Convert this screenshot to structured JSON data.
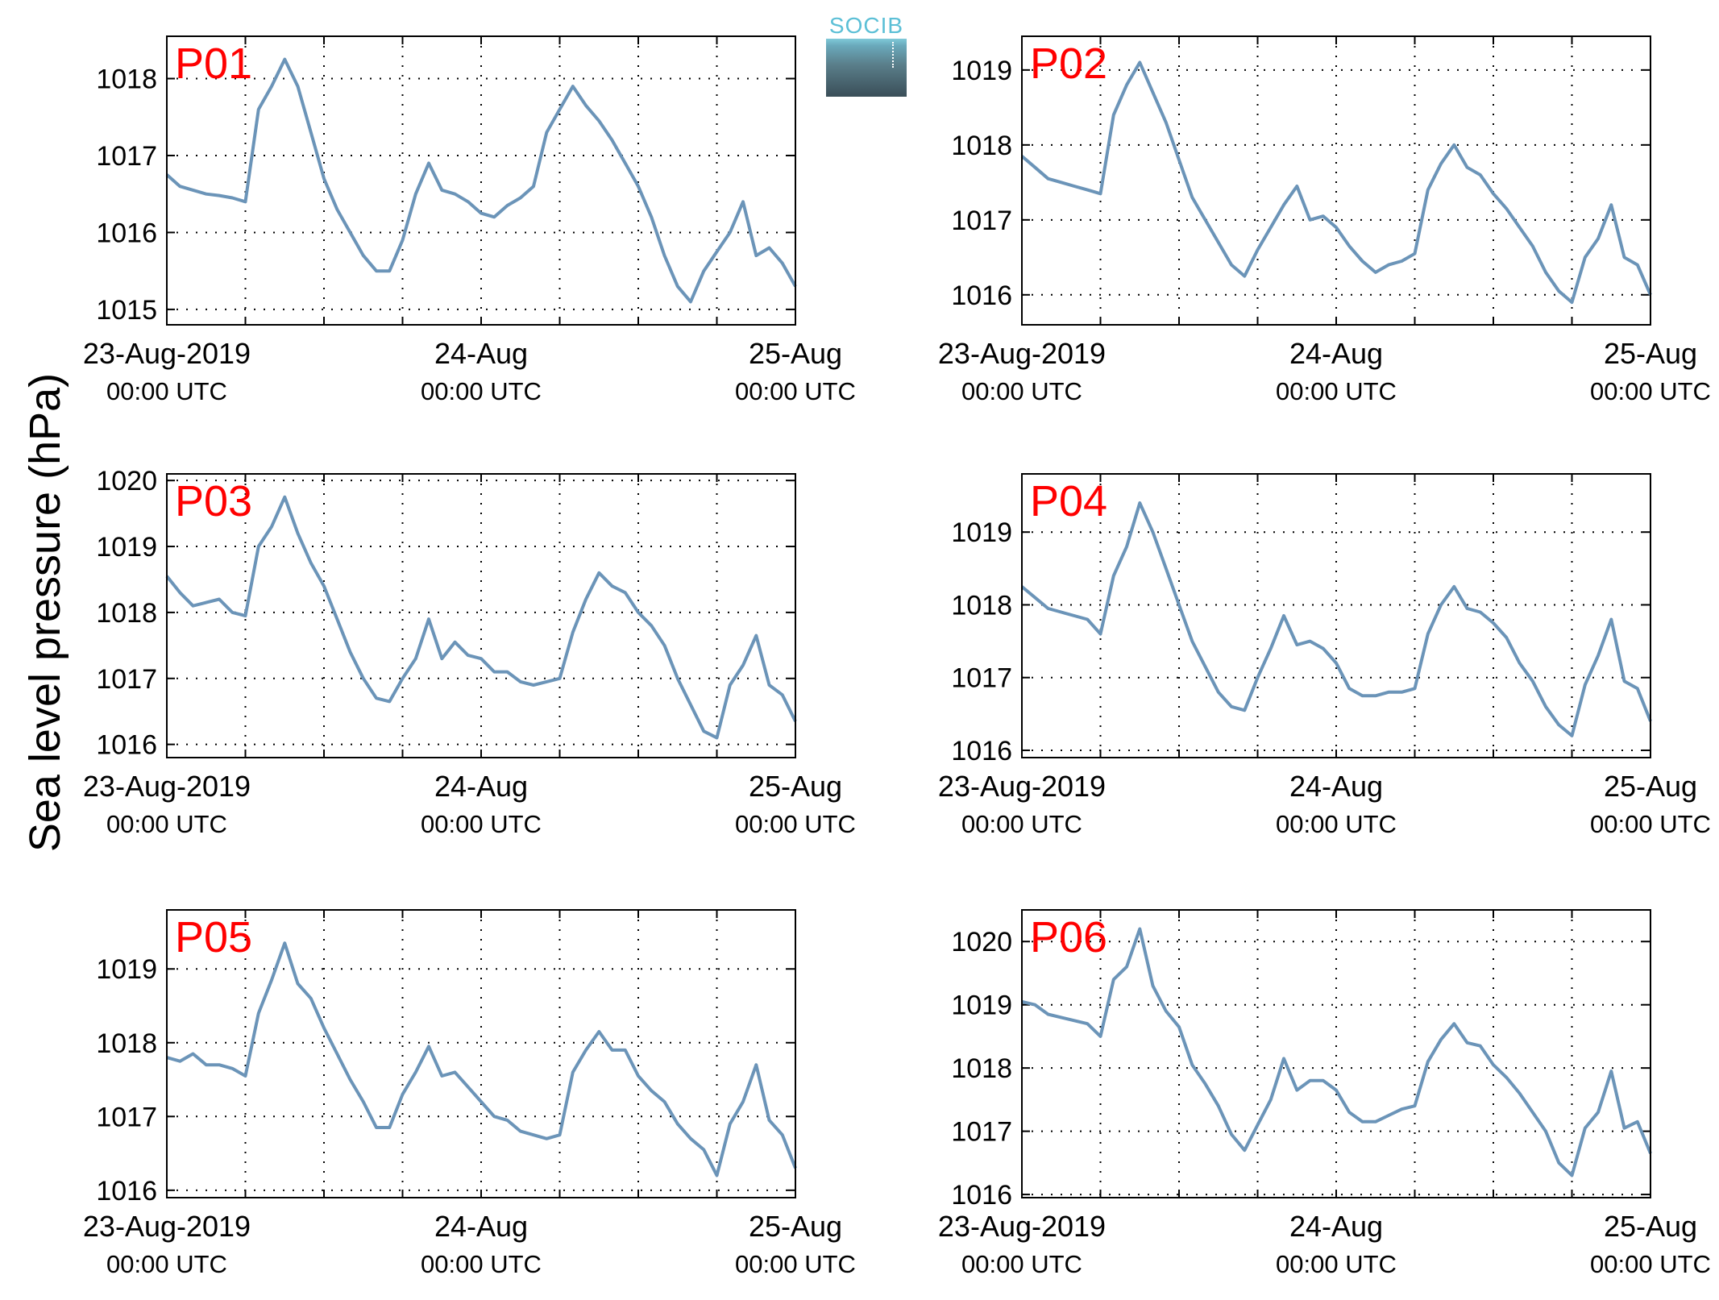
{
  "figure": {
    "ylabel": "Sea level pressure (hPa)",
    "logo_text": "SOCIB",
    "x_ticks": [
      {
        "main": "23-Aug-2019",
        "sub": "00:00 UTC"
      },
      {
        "main": "24-Aug",
        "sub": "00:00 UTC"
      },
      {
        "main": "25-Aug",
        "sub": "00:00 UTC"
      }
    ],
    "colors": {
      "line": "#6b94b8",
      "panel_label": "#ff0000",
      "axes": "#000000",
      "grid": "#000000"
    }
  },
  "chart_data": [
    {
      "type": "line",
      "label": "P01",
      "xlim": [
        0,
        48
      ],
      "ylim": [
        1014.8,
        1018.55
      ],
      "yticks": [
        1015,
        1016,
        1017,
        1018
      ],
      "grid": true,
      "x": [
        0,
        1,
        2,
        3,
        4,
        5,
        6,
        7,
        8,
        9,
        10,
        11,
        12,
        13,
        14,
        15,
        16,
        17,
        18,
        19,
        20,
        21,
        22,
        23,
        24,
        25,
        26,
        27,
        28,
        29,
        30,
        31,
        32,
        33,
        34,
        35,
        36,
        37,
        38,
        39,
        40,
        41,
        42,
        43,
        44,
        45,
        46,
        47,
        48
      ],
      "values": [
        1016.75,
        1016.6,
        1016.55,
        1016.5,
        1016.48,
        1016.45,
        1016.4,
        1017.6,
        1017.9,
        1018.25,
        1017.9,
        1017.3,
        1016.7,
        1016.3,
        1016.0,
        1015.7,
        1015.5,
        1015.5,
        1015.9,
        1016.5,
        1016.9,
        1016.55,
        1016.5,
        1016.4,
        1016.25,
        1016.2,
        1016.35,
        1016.45,
        1016.6,
        1017.3,
        1017.6,
        1017.9,
        1017.65,
        1017.45,
        1017.2,
        1016.9,
        1016.6,
        1016.2,
        1015.7,
        1015.3,
        1015.1,
        1015.5,
        1015.75,
        1016.0,
        1016.4,
        1015.7,
        1015.8,
        1015.6,
        1015.3
      ]
    },
    {
      "type": "line",
      "label": "P02",
      "xlim": [
        0,
        48
      ],
      "ylim": [
        1015.6,
        1019.45
      ],
      "yticks": [
        1016,
        1017,
        1018,
        1019
      ],
      "grid": true,
      "x": [
        0,
        1,
        2,
        3,
        4,
        5,
        6,
        7,
        8,
        9,
        10,
        11,
        12,
        13,
        14,
        15,
        16,
        17,
        18,
        19,
        20,
        21,
        22,
        23,
        24,
        25,
        26,
        27,
        28,
        29,
        30,
        31,
        32,
        33,
        34,
        35,
        36,
        37,
        38,
        39,
        40,
        41,
        42,
        43,
        44,
        45,
        46,
        47,
        48
      ],
      "values": [
        1017.85,
        1017.7,
        1017.55,
        1017.5,
        1017.45,
        1017.4,
        1017.35,
        1018.4,
        1018.8,
        1019.1,
        1018.7,
        1018.3,
        1017.8,
        1017.3,
        1017.0,
        1016.7,
        1016.4,
        1016.25,
        1016.6,
        1016.9,
        1017.2,
        1017.45,
        1017.0,
        1017.05,
        1016.9,
        1016.65,
        1016.45,
        1016.3,
        1016.4,
        1016.45,
        1016.55,
        1017.4,
        1017.75,
        1018.0,
        1017.7,
        1017.6,
        1017.35,
        1017.15,
        1016.9,
        1016.65,
        1016.3,
        1016.05,
        1015.9,
        1016.5,
        1016.75,
        1017.2,
        1016.5,
        1016.4,
        1016.0
      ]
    },
    {
      "type": "line",
      "label": "P03",
      "xlim": [
        0,
        48
      ],
      "ylim": [
        1015.8,
        1020.1
      ],
      "yticks": [
        1016,
        1017,
        1018,
        1019,
        1020
      ],
      "grid": true,
      "x": [
        0,
        1,
        2,
        3,
        4,
        5,
        6,
        7,
        8,
        9,
        10,
        11,
        12,
        13,
        14,
        15,
        16,
        17,
        18,
        19,
        20,
        21,
        22,
        23,
        24,
        25,
        26,
        27,
        28,
        29,
        30,
        31,
        32,
        33,
        34,
        35,
        36,
        37,
        38,
        39,
        40,
        41,
        42,
        43,
        44,
        45,
        46,
        47,
        48
      ],
      "values": [
        1018.55,
        1018.3,
        1018.1,
        1018.15,
        1018.2,
        1018.0,
        1017.95,
        1019.0,
        1019.3,
        1019.75,
        1019.2,
        1018.75,
        1018.4,
        1017.9,
        1017.4,
        1017.0,
        1016.7,
        1016.65,
        1017.0,
        1017.3,
        1017.9,
        1017.3,
        1017.55,
        1017.35,
        1017.3,
        1017.1,
        1017.1,
        1016.95,
        1016.9,
        1016.95,
        1017.0,
        1017.7,
        1018.2,
        1018.6,
        1018.4,
        1018.3,
        1018.0,
        1017.8,
        1017.5,
        1017.0,
        1016.6,
        1016.2,
        1016.1,
        1016.9,
        1017.2,
        1017.65,
        1016.9,
        1016.75,
        1016.35
      ]
    },
    {
      "type": "line",
      "label": "P04",
      "xlim": [
        0,
        48
      ],
      "ylim": [
        1015.9,
        1019.8
      ],
      "yticks": [
        1016,
        1017,
        1018,
        1019
      ],
      "grid": true,
      "x": [
        0,
        1,
        2,
        3,
        4,
        5,
        6,
        7,
        8,
        9,
        10,
        11,
        12,
        13,
        14,
        15,
        16,
        17,
        18,
        19,
        20,
        21,
        22,
        23,
        24,
        25,
        26,
        27,
        28,
        29,
        30,
        31,
        32,
        33,
        34,
        35,
        36,
        37,
        38,
        39,
        40,
        41,
        42,
        43,
        44,
        45,
        46,
        47,
        48
      ],
      "values": [
        1018.25,
        1018.1,
        1017.95,
        1017.9,
        1017.85,
        1017.8,
        1017.6,
        1018.4,
        1018.8,
        1019.4,
        1019.0,
        1018.5,
        1018.0,
        1017.5,
        1017.15,
        1016.8,
        1016.6,
        1016.55,
        1017.0,
        1017.4,
        1017.85,
        1017.45,
        1017.5,
        1017.4,
        1017.2,
        1016.85,
        1016.75,
        1016.75,
        1016.8,
        1016.8,
        1016.85,
        1017.6,
        1018.0,
        1018.25,
        1017.95,
        1017.9,
        1017.75,
        1017.55,
        1017.2,
        1016.95,
        1016.6,
        1016.35,
        1016.2,
        1016.9,
        1017.3,
        1017.8,
        1016.95,
        1016.85,
        1016.4
      ]
    },
    {
      "type": "line",
      "label": "P05",
      "xlim": [
        0,
        48
      ],
      "ylim": [
        1015.9,
        1019.8
      ],
      "yticks": [
        1016,
        1017,
        1018,
        1019
      ],
      "grid": true,
      "x": [
        0,
        1,
        2,
        3,
        4,
        5,
        6,
        7,
        8,
        9,
        10,
        11,
        12,
        13,
        14,
        15,
        16,
        17,
        18,
        19,
        20,
        21,
        22,
        23,
        24,
        25,
        26,
        27,
        28,
        29,
        30,
        31,
        32,
        33,
        34,
        35,
        36,
        37,
        38,
        39,
        40,
        41,
        42,
        43,
        44,
        45,
        46,
        47,
        48
      ],
      "values": [
        1017.8,
        1017.75,
        1017.85,
        1017.7,
        1017.7,
        1017.65,
        1017.55,
        1018.4,
        1018.85,
        1019.35,
        1018.8,
        1018.6,
        1018.2,
        1017.85,
        1017.5,
        1017.2,
        1016.85,
        1016.85,
        1017.3,
        1017.6,
        1017.95,
        1017.55,
        1017.6,
        1017.4,
        1017.2,
        1017.0,
        1016.95,
        1016.8,
        1016.75,
        1016.7,
        1016.75,
        1017.6,
        1017.9,
        1018.15,
        1017.9,
        1017.9,
        1017.55,
        1017.35,
        1017.2,
        1016.9,
        1016.7,
        1016.55,
        1016.2,
        1016.9,
        1017.2,
        1017.7,
        1016.95,
        1016.75,
        1016.3
      ]
    },
    {
      "type": "line",
      "label": "P06",
      "xlim": [
        0,
        48
      ],
      "ylim": [
        1015.95,
        1020.5
      ],
      "yticks": [
        1016,
        1017,
        1018,
        1019,
        1020
      ],
      "grid": true,
      "x": [
        0,
        1,
        2,
        3,
        4,
        5,
        6,
        7,
        8,
        9,
        10,
        11,
        12,
        13,
        14,
        15,
        16,
        17,
        18,
        19,
        20,
        21,
        22,
        23,
        24,
        25,
        26,
        27,
        28,
        29,
        30,
        31,
        32,
        33,
        34,
        35,
        36,
        37,
        38,
        39,
        40,
        41,
        42,
        43,
        44,
        45,
        46,
        47,
        48
      ],
      "values": [
        1019.05,
        1019.0,
        1018.85,
        1018.8,
        1018.75,
        1018.7,
        1018.5,
        1019.4,
        1019.6,
        1020.2,
        1019.3,
        1018.9,
        1018.65,
        1018.05,
        1017.75,
        1017.4,
        1016.95,
        1016.7,
        1017.1,
        1017.5,
        1018.15,
        1017.65,
        1017.8,
        1017.8,
        1017.65,
        1017.3,
        1017.15,
        1017.15,
        1017.25,
        1017.35,
        1017.4,
        1018.1,
        1018.45,
        1018.7,
        1018.4,
        1018.35,
        1018.05,
        1017.85,
        1017.6,
        1017.3,
        1017.0,
        1016.5,
        1016.3,
        1017.05,
        1017.3,
        1017.95,
        1017.05,
        1017.15,
        1016.65
      ]
    }
  ]
}
